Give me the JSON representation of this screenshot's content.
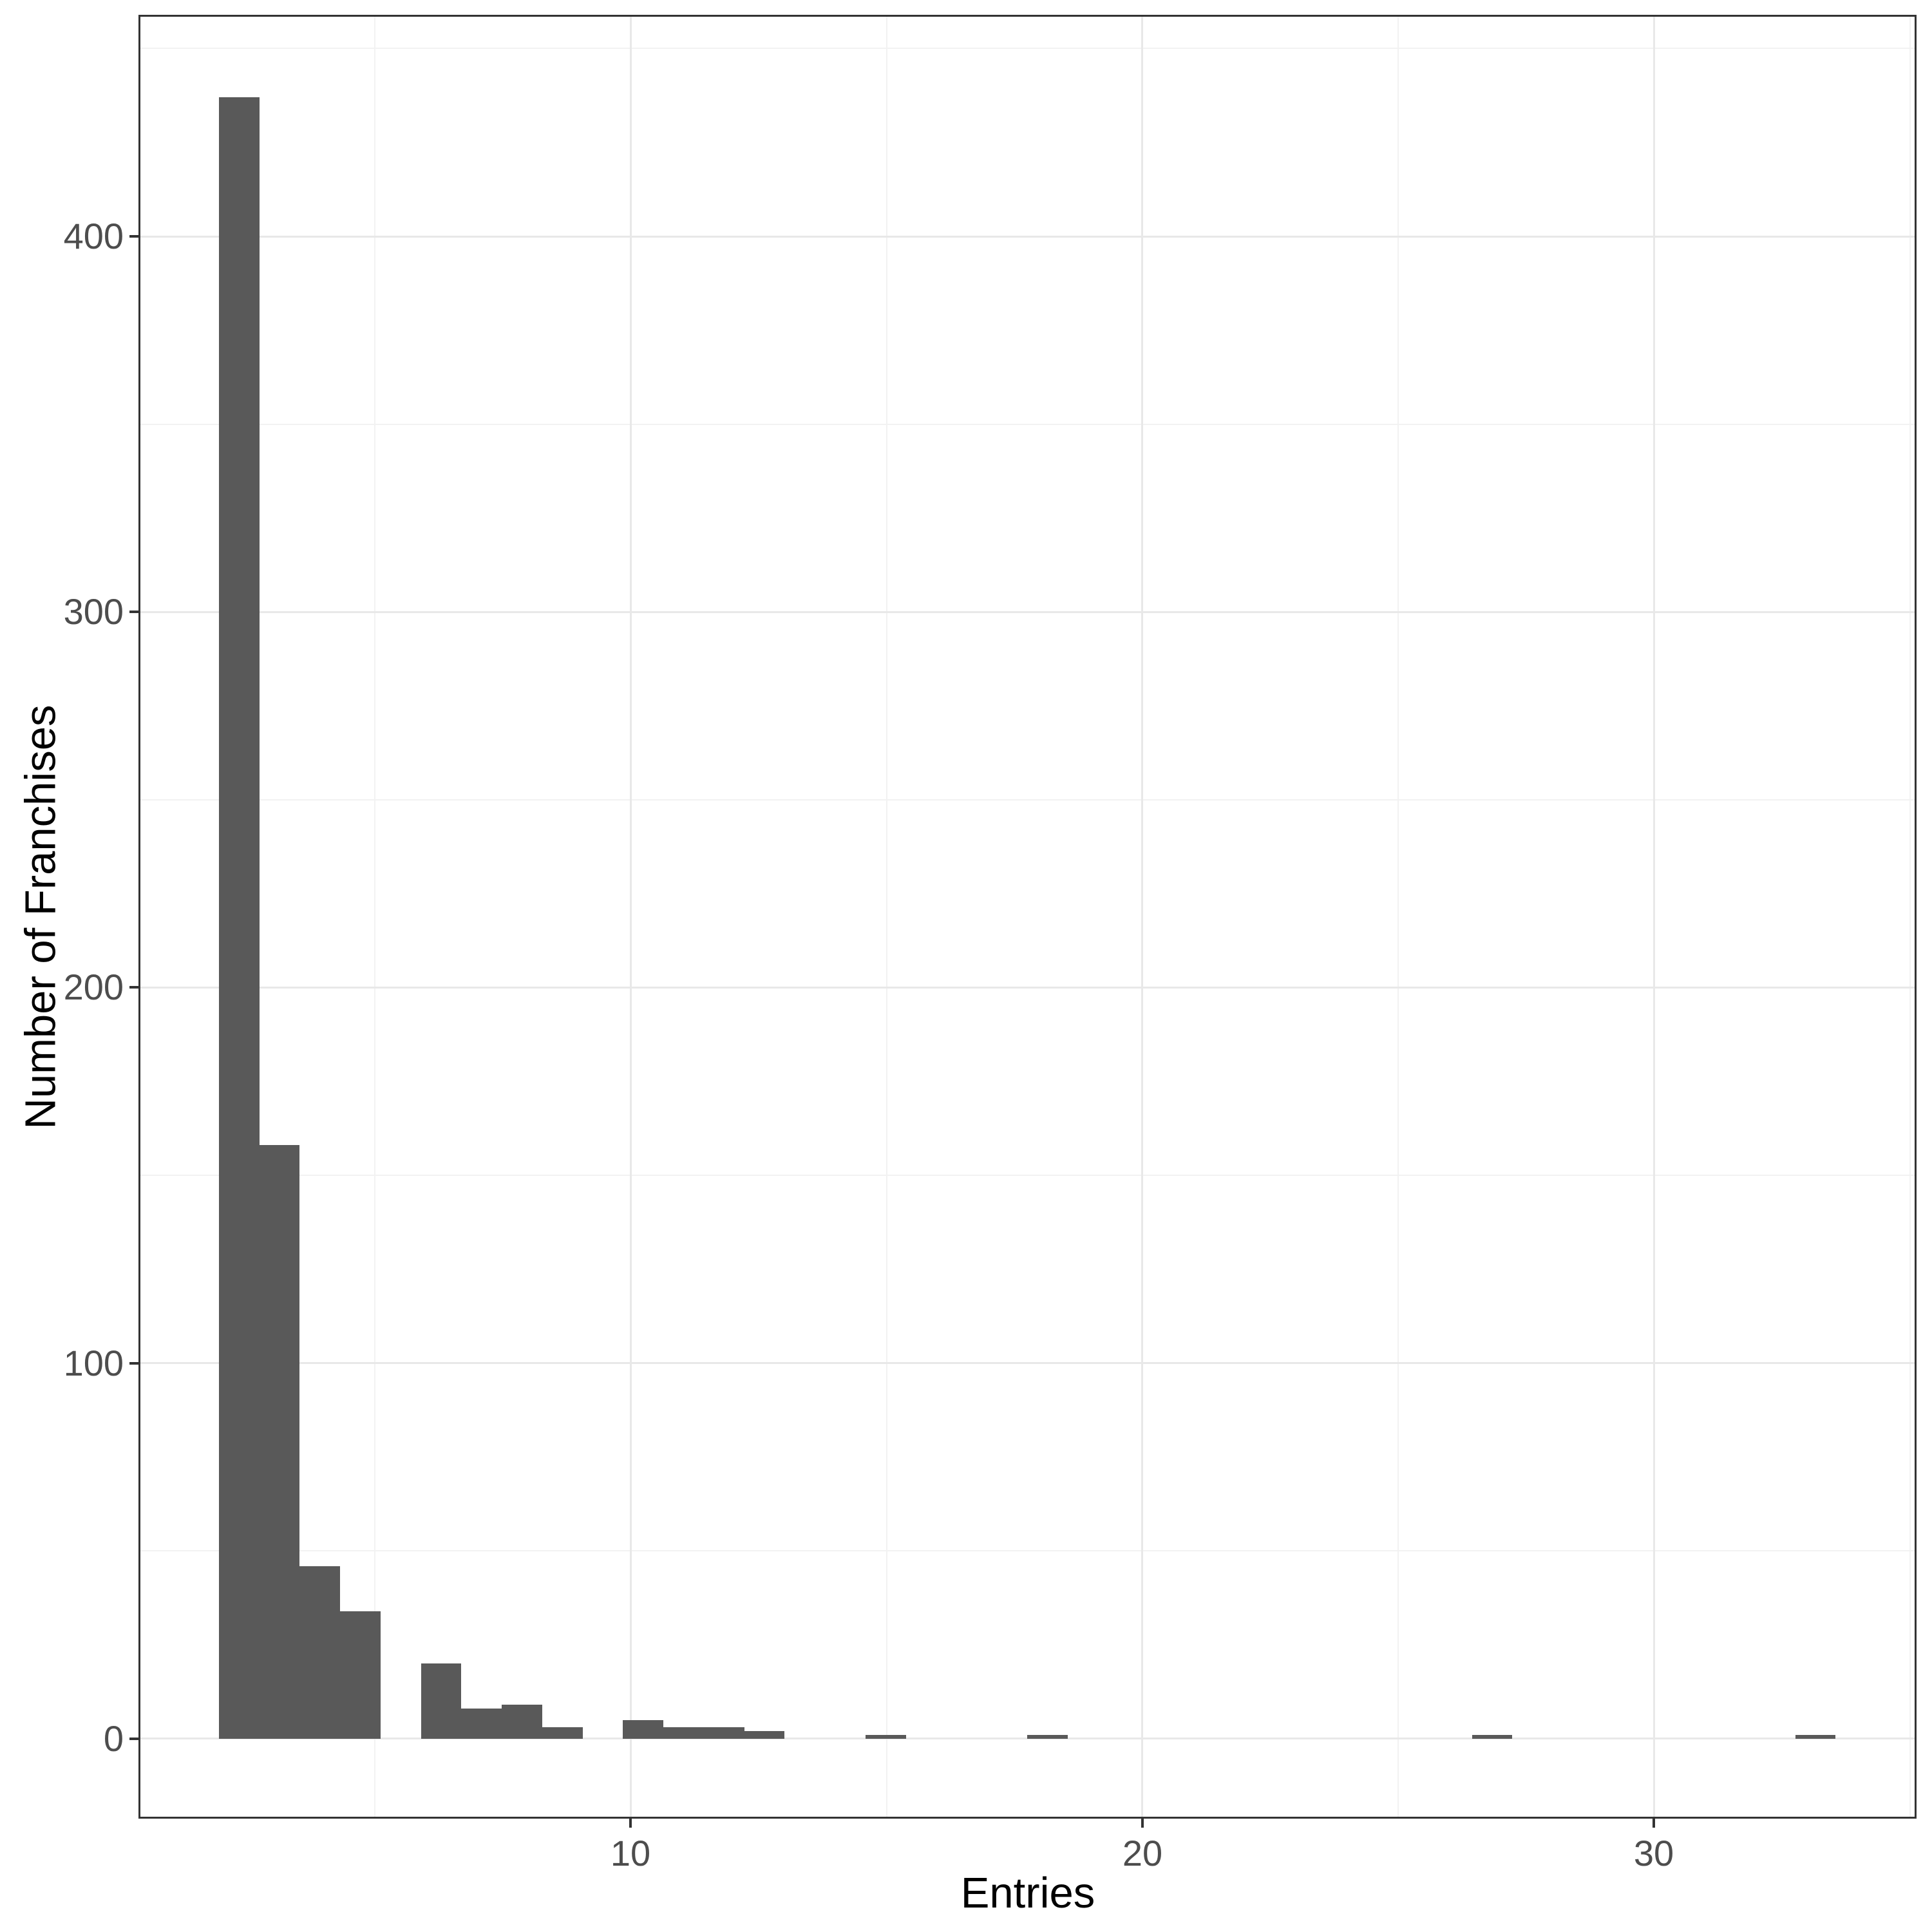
{
  "chart_data": {
    "type": "bar",
    "subtype": "histogram",
    "title": "",
    "xlabel": "Entries",
    "ylabel": "Number of Franchises",
    "x_ticks": [
      10,
      20,
      30
    ],
    "x_minor_ticks": [
      5,
      15,
      25,
      35
    ],
    "y_ticks": [
      0,
      100,
      200,
      300,
      400
    ],
    "y_minor_ticks": [
      50,
      150,
      250,
      350,
      450
    ],
    "x_domain": [
      0.38,
      35.13
    ],
    "y_domain": [
      -21.3,
      459.0
    ],
    "grid": "major and minor gridlines on white background",
    "legend_position": "none",
    "bin_width": 0.79,
    "bars": [
      {
        "x0": 1.95,
        "x1": 2.74,
        "count": 437
      },
      {
        "x0": 2.74,
        "x1": 3.53,
        "count": 158
      },
      {
        "x0": 3.53,
        "x1": 4.32,
        "count": 46
      },
      {
        "x0": 4.32,
        "x1": 5.11,
        "count": 34
      },
      {
        "x0": 5.9,
        "x1": 6.69,
        "count": 20
      },
      {
        "x0": 6.69,
        "x1": 7.48,
        "count": 8
      },
      {
        "x0": 7.48,
        "x1": 8.27,
        "count": 9
      },
      {
        "x0": 8.27,
        "x1": 9.06,
        "count": 3
      },
      {
        "x0": 9.85,
        "x1": 10.64,
        "count": 5
      },
      {
        "x0": 10.64,
        "x1": 11.43,
        "count": 3
      },
      {
        "x0": 11.43,
        "x1": 12.22,
        "count": 3
      },
      {
        "x0": 12.22,
        "x1": 13.01,
        "count": 2
      },
      {
        "x0": 14.59,
        "x1": 15.38,
        "count": 1
      },
      {
        "x0": 17.75,
        "x1": 18.54,
        "count": 1
      },
      {
        "x0": 26.44,
        "x1": 27.23,
        "count": 1
      },
      {
        "x0": 32.76,
        "x1": 33.55,
        "count": 1
      }
    ],
    "colors": {
      "bar_fill": "#595959",
      "panel_border": "#333333",
      "tick_mark": "#333333",
      "tick_label": "#4d4d4d",
      "axis_title": "#000000",
      "grid_major": "#e8e8e8",
      "grid_minor": "#f2f2f2",
      "background": "#ffffff"
    }
  }
}
